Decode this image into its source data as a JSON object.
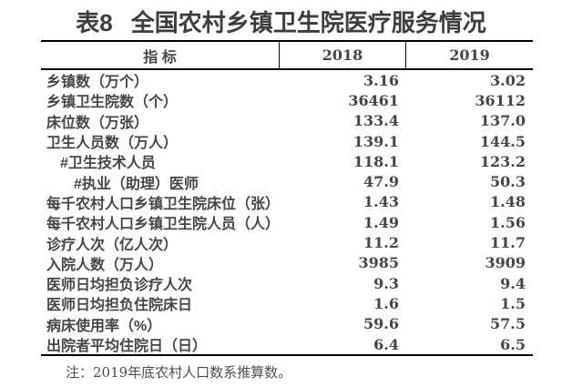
{
  "title": {
    "prefix": "表8",
    "text": "全国农村乡镇卫生院医疗服务情况"
  },
  "table": {
    "columns": [
      "指 标",
      "2018",
      "2019"
    ],
    "rows": [
      {
        "label": "乡镇数（万个）",
        "y2018": "3.16",
        "y2019": "3.02"
      },
      {
        "label": "乡镇卫生院数（个）",
        "y2018": "36461",
        "y2019": "36112"
      },
      {
        "label": "床位数（万张）",
        "y2018": "133.4",
        "y2019": "137.0"
      },
      {
        "label": "卫生人员数（万人）",
        "y2018": "139.1",
        "y2019": "144.5"
      },
      {
        "label": "#卫生技术人员",
        "y2018": "118.1",
        "y2019": "123.2"
      },
      {
        "label": "#执业（助理）医师",
        "y2018": "47.9",
        "y2019": "50.3"
      },
      {
        "label": "每千农村人口乡镇卫生院床位（张）",
        "y2018": "1.43",
        "y2019": "1.48"
      },
      {
        "label": "每千农村人口乡镇卫生院人员（人）",
        "y2018": "1.49",
        "y2019": "1.56"
      },
      {
        "label": "诊疗人次（亿人次）",
        "y2018": "11.2",
        "y2019": "11.7"
      },
      {
        "label": "入院人数（万人）",
        "y2018": "3985",
        "y2019": "3909"
      },
      {
        "label": "医师日均担负诊疗人次",
        "y2018": "9.3",
        "y2019": "9.4"
      },
      {
        "label": "医师日均担负住院床日",
        "y2018": "1.6",
        "y2019": "1.5"
      },
      {
        "label": "病床使用率（%）",
        "y2018": "59.6",
        "y2019": "57.5"
      },
      {
        "label": "出院者平均住院日（日）",
        "y2018": "6.4",
        "y2019": "6.5"
      }
    ]
  },
  "note": "注：2019年底农村人口数系推算数。",
  "colors": {
    "background": "#ffffff",
    "title_text": "#3e3e3e",
    "body_text": "#464646",
    "note_text": "#4f4f4f",
    "border": "#000000"
  }
}
